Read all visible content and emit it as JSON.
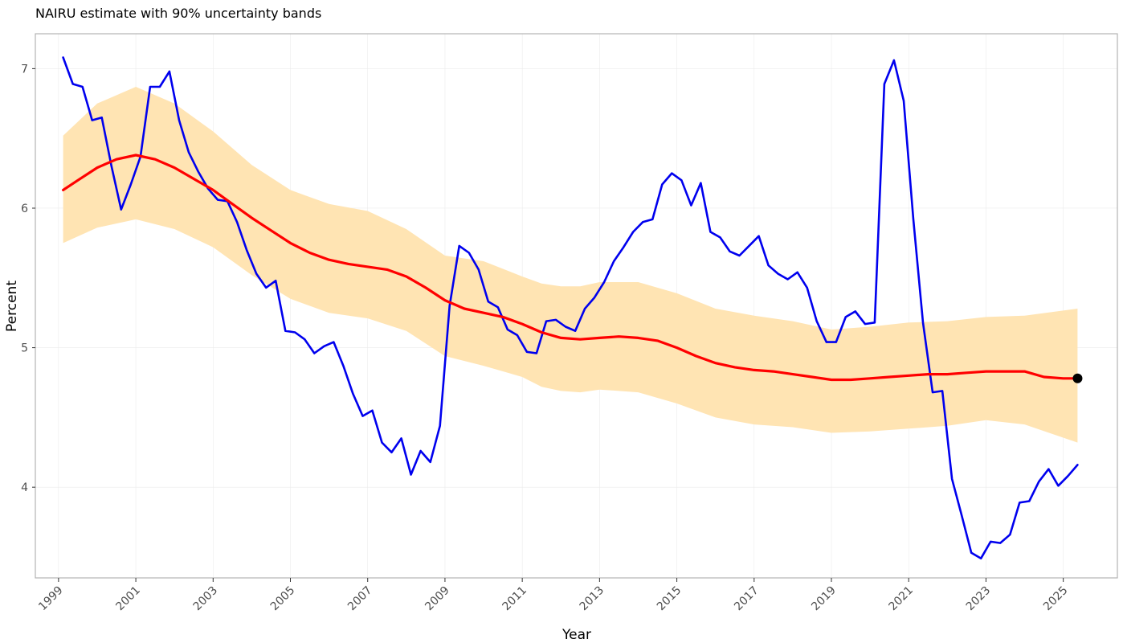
{
  "chart_data": {
    "type": "line",
    "title": "NAIRU estimate with 90% uncertainty bands",
    "xlabel": "Year",
    "ylabel": "Percent",
    "xlim": [
      1998.4,
      2026.4
    ],
    "ylim": [
      3.35,
      7.25
    ],
    "x_ticks": [
      "1999",
      "2001",
      "2003",
      "2005",
      "2007",
      "2009",
      "2011",
      "2013",
      "2015",
      "2017",
      "2019",
      "2021",
      "2023",
      "2025"
    ],
    "y_ticks": [
      "4",
      "5",
      "6",
      "7"
    ],
    "grid": true,
    "colors": {
      "band": "#ffe4b3",
      "nairu": "#ff0000",
      "unemployment": "#0000ee",
      "endpoint": "#000000"
    },
    "band": {
      "x": [
        1999.12,
        2000.0,
        2001.0,
        2002.0,
        2003.0,
        2004.0,
        2005.0,
        2006.0,
        2007.0,
        2008.0,
        2009.0,
        2010.0,
        2011.0,
        2011.5,
        2012.0,
        2012.5,
        2013.0,
        2014.0,
        2015.0,
        2016.0,
        2017.0,
        2018.0,
        2019.0,
        2020.0,
        2021.0,
        2022.0,
        2023.0,
        2024.0,
        2025.37
      ],
      "lower": [
        5.75,
        5.86,
        5.92,
        5.85,
        5.72,
        5.52,
        5.35,
        5.25,
        5.21,
        5.12,
        4.94,
        4.87,
        4.79,
        4.72,
        4.69,
        4.68,
        4.7,
        4.68,
        4.6,
        4.5,
        4.45,
        4.43,
        4.39,
        4.4,
        4.42,
        4.44,
        4.48,
        4.45,
        4.32
      ],
      "upper": [
        6.52,
        6.75,
        6.87,
        6.75,
        6.55,
        6.31,
        6.13,
        6.03,
        5.98,
        5.85,
        5.66,
        5.62,
        5.51,
        5.46,
        5.44,
        5.44,
        5.47,
        5.47,
        5.39,
        5.28,
        5.23,
        5.19,
        5.13,
        5.15,
        5.18,
        5.19,
        5.22,
        5.23,
        5.28
      ]
    },
    "series": [
      {
        "key": "nairu",
        "x": [
          1999.12,
          1999.5,
          2000.0,
          2000.5,
          2001.0,
          2001.5,
          2002.0,
          2002.5,
          2003.0,
          2003.5,
          2004.0,
          2004.5,
          2005.0,
          2005.5,
          2006.0,
          2006.5,
          2007.0,
          2007.5,
          2008.0,
          2008.5,
          2009.0,
          2009.5,
          2010.0,
          2010.5,
          2011.0,
          2011.5,
          2012.0,
          2012.5,
          2013.0,
          2013.5,
          2014.0,
          2014.5,
          2015.0,
          2015.5,
          2016.0,
          2016.5,
          2017.0,
          2017.5,
          2018.0,
          2018.5,
          2019.0,
          2019.5,
          2020.0,
          2020.5,
          2021.0,
          2021.5,
          2022.0,
          2022.5,
          2023.0,
          2023.5,
          2024.0,
          2024.5,
          2025.0,
          2025.37
        ],
        "values": [
          6.13,
          6.2,
          6.29,
          6.35,
          6.38,
          6.35,
          6.29,
          6.21,
          6.13,
          6.03,
          5.93,
          5.84,
          5.75,
          5.68,
          5.63,
          5.6,
          5.58,
          5.56,
          5.51,
          5.43,
          5.34,
          5.28,
          5.25,
          5.22,
          5.17,
          5.11,
          5.07,
          5.06,
          5.07,
          5.08,
          5.07,
          5.05,
          5.0,
          4.94,
          4.89,
          4.86,
          4.84,
          4.83,
          4.81,
          4.79,
          4.77,
          4.77,
          4.78,
          4.79,
          4.8,
          4.81,
          4.81,
          4.82,
          4.83,
          4.83,
          4.83,
          4.79,
          4.78,
          4.78
        ]
      },
      {
        "key": "unemployment",
        "x": [
          1999.12,
          1999.37,
          1999.62,
          1999.87,
          2000.12,
          2000.37,
          2000.62,
          2000.87,
          2001.12,
          2001.37,
          2001.62,
          2001.87,
          2002.12,
          2002.37,
          2002.62,
          2002.87,
          2003.12,
          2003.37,
          2003.62,
          2003.87,
          2004.12,
          2004.37,
          2004.62,
          2004.87,
          2005.12,
          2005.37,
          2005.62,
          2005.87,
          2006.12,
          2006.37,
          2006.62,
          2006.87,
          2007.12,
          2007.37,
          2007.62,
          2007.87,
          2008.12,
          2008.37,
          2008.62,
          2008.87,
          2009.12,
          2009.37,
          2009.62,
          2009.87,
          2010.12,
          2010.37,
          2010.62,
          2010.87,
          2011.12,
          2011.37,
          2011.62,
          2011.87,
          2012.12,
          2012.37,
          2012.62,
          2012.87,
          2013.12,
          2013.37,
          2013.62,
          2013.87,
          2014.12,
          2014.37,
          2014.62,
          2014.87,
          2015.12,
          2015.37,
          2015.62,
          2015.87,
          2016.12,
          2016.37,
          2016.62,
          2016.87,
          2017.12,
          2017.37,
          2017.62,
          2017.87,
          2018.12,
          2018.37,
          2018.62,
          2018.87,
          2019.12,
          2019.37,
          2019.62,
          2019.87,
          2020.12,
          2020.37,
          2020.62,
          2020.87,
          2021.12,
          2021.37,
          2021.62,
          2021.87,
          2022.12,
          2022.37,
          2022.62,
          2022.87,
          2023.12,
          2023.37,
          2023.62,
          2023.87,
          2024.12,
          2024.37,
          2024.62,
          2024.87,
          2025.12,
          2025.37
        ],
        "values": [
          7.08,
          6.89,
          6.87,
          6.63,
          6.65,
          6.3,
          5.99,
          6.17,
          6.37,
          6.87,
          6.87,
          6.98,
          6.63,
          6.4,
          6.26,
          6.14,
          6.06,
          6.05,
          5.9,
          5.7,
          5.53,
          5.43,
          5.48,
          5.12,
          5.11,
          5.06,
          4.96,
          5.01,
          5.04,
          4.87,
          4.67,
          4.51,
          4.55,
          4.32,
          4.25,
          4.35,
          4.09,
          4.26,
          4.18,
          4.44,
          5.3,
          5.73,
          5.68,
          5.56,
          5.33,
          5.29,
          5.13,
          5.09,
          4.97,
          4.96,
          5.19,
          5.2,
          5.15,
          5.12,
          5.28,
          5.36,
          5.47,
          5.62,
          5.72,
          5.83,
          5.9,
          5.92,
          6.17,
          6.25,
          6.2,
          6.02,
          6.18,
          5.83,
          5.79,
          5.69,
          5.66,
          5.73,
          5.8,
          5.59,
          5.53,
          5.49,
          5.54,
          5.43,
          5.19,
          5.04,
          5.04,
          5.22,
          5.26,
          5.17,
          5.18,
          6.89,
          7.06,
          6.77,
          5.92,
          5.18,
          4.68,
          4.69,
          4.06,
          3.8,
          3.53,
          3.49,
          3.61,
          3.6,
          3.66,
          3.89,
          3.9,
          4.04,
          4.13,
          4.01,
          4.08,
          4.16
        ]
      }
    ],
    "endpoint": {
      "x": 2025.37,
      "y": 4.78
    }
  }
}
